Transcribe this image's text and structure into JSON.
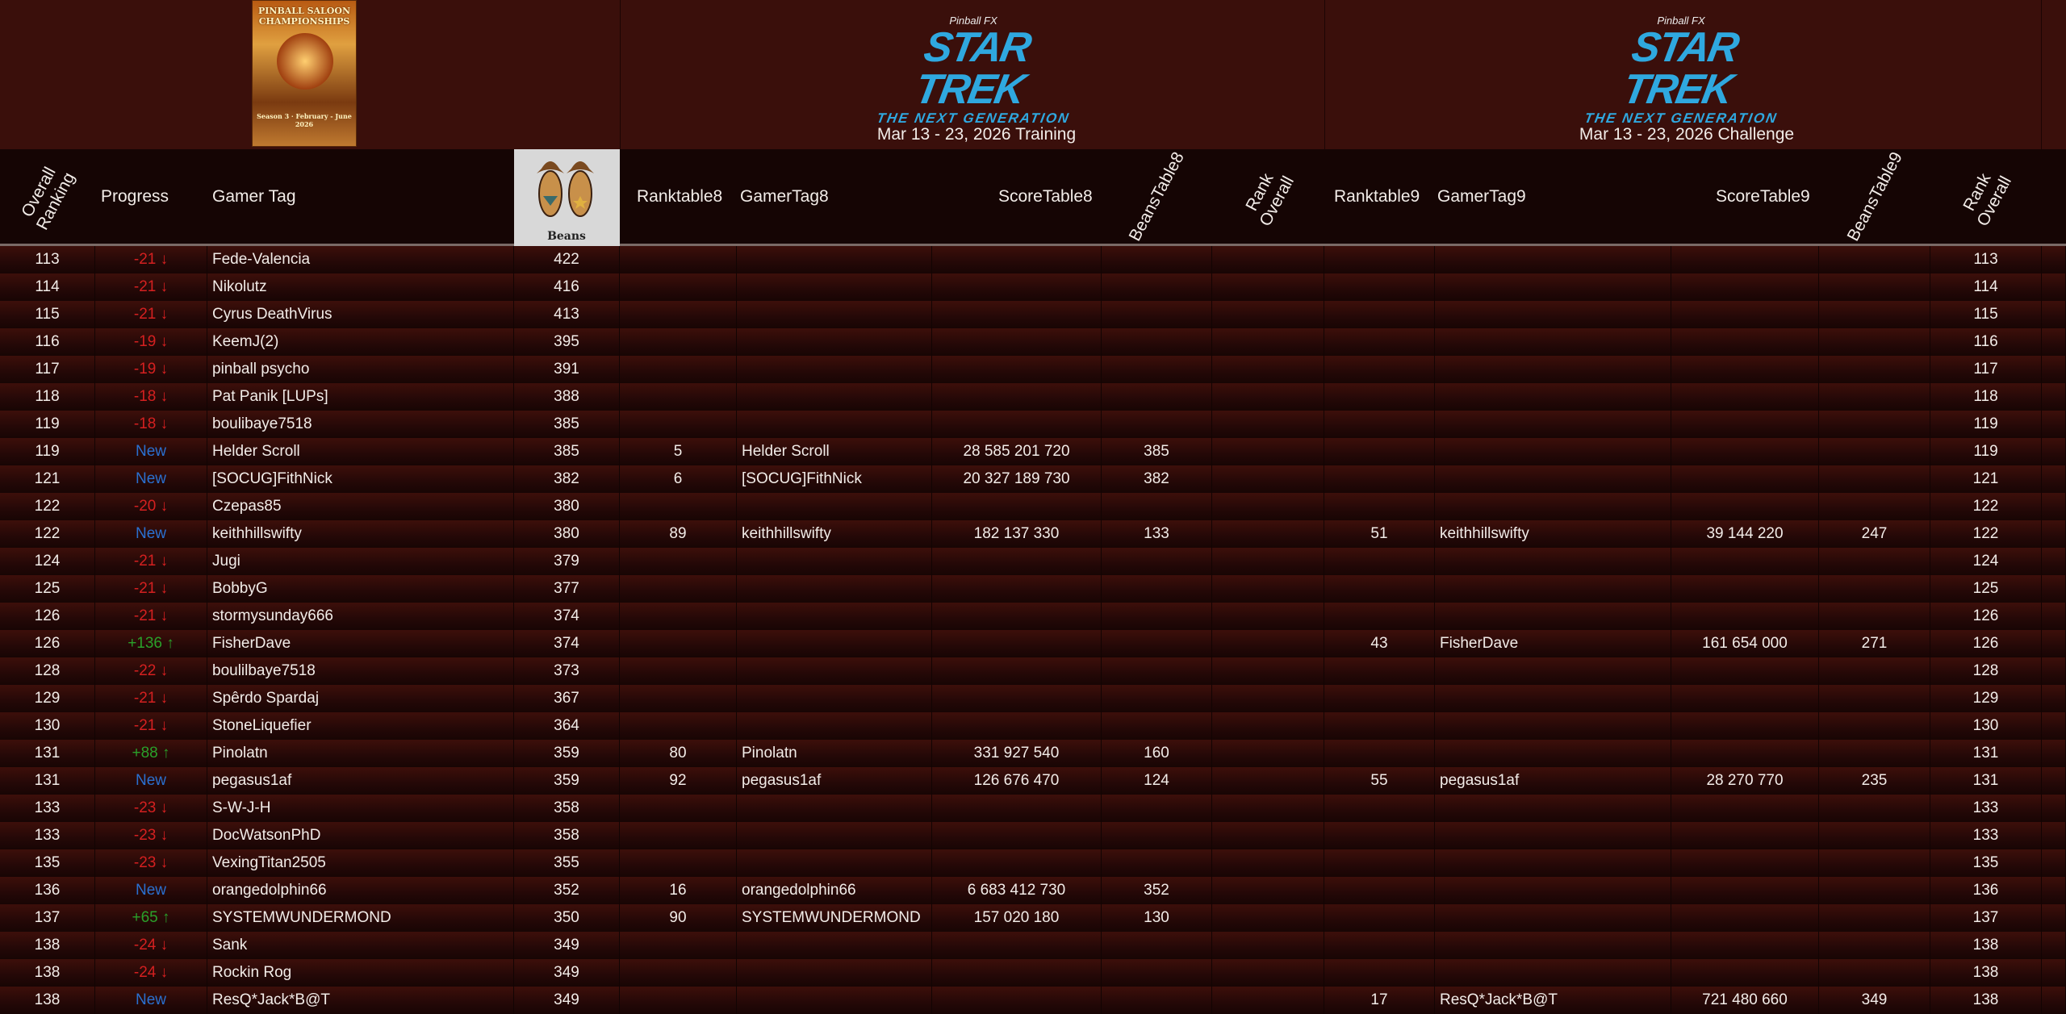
{
  "poster": {
    "title": "PINBALL SALOON CHAMPIONSHIPS",
    "season": "Season 3 · February - June 2026"
  },
  "logos": {
    "pinball_fx": "Pinball FX",
    "star_trek": "STAR TREK",
    "tng": "THE NEXT GENERATION"
  },
  "sections": {
    "training": "Mar 13 - 23, 2026 Training",
    "challenge": "Mar 13 - 23, 2026  Challenge"
  },
  "headers": {
    "overall_ranking": "Overall Ranking",
    "progress": "Progress",
    "gamer_tag": "Gamer Tag",
    "beans": "Beans",
    "ranktable8": "Ranktable8",
    "gamertag8": "GamerTag8",
    "scoretable8": "ScoreTable8",
    "beanstable8": "BeansTable8",
    "rank_overall8": "Rank Overall",
    "ranktable9": "Ranktable9",
    "gamertag9": "GamerTag9",
    "scoretable9": "ScoreTable9",
    "beanstable9": "BeansTable9",
    "rank_overall9": "Rank Overall"
  },
  "colors": {
    "down": "#d42020",
    "up": "#2aa02a",
    "new": "#2a70d0",
    "accent": "#2fa8df"
  },
  "rows": [
    {
      "rank": "113",
      "progress": "-21 ↓",
      "type": "neg",
      "tag": "Fede-Valencia",
      "beans": "422",
      "rt8": "",
      "gt8": "",
      "s8": "",
      "b8": "",
      "rt9": "",
      "gt9": "",
      "s9": "",
      "b9": "",
      "ro9": "113"
    },
    {
      "rank": "114",
      "progress": "-21 ↓",
      "type": "neg",
      "tag": "Nikolutz",
      "beans": "416",
      "rt8": "",
      "gt8": "",
      "s8": "",
      "b8": "",
      "rt9": "",
      "gt9": "",
      "s9": "",
      "b9": "",
      "ro9": "114"
    },
    {
      "rank": "115",
      "progress": "-21 ↓",
      "type": "neg",
      "tag": "Cyrus DeathVirus",
      "beans": "413",
      "rt8": "",
      "gt8": "",
      "s8": "",
      "b8": "",
      "rt9": "",
      "gt9": "",
      "s9": "",
      "b9": "",
      "ro9": "115"
    },
    {
      "rank": "116",
      "progress": "-19 ↓",
      "type": "neg",
      "tag": "KeemJ(2)",
      "beans": "395",
      "rt8": "",
      "gt8": "",
      "s8": "",
      "b8": "",
      "rt9": "",
      "gt9": "",
      "s9": "",
      "b9": "",
      "ro9": "116"
    },
    {
      "rank": "117",
      "progress": "-19 ↓",
      "type": "neg",
      "tag": "pinball psycho",
      "beans": "391",
      "rt8": "",
      "gt8": "",
      "s8": "",
      "b8": "",
      "rt9": "",
      "gt9": "",
      "s9": "",
      "b9": "",
      "ro9": "117"
    },
    {
      "rank": "118",
      "progress": "-18 ↓",
      "type": "neg",
      "tag": "Pat Panik [LUPs]",
      "beans": "388",
      "rt8": "",
      "gt8": "",
      "s8": "",
      "b8": "",
      "rt9": "",
      "gt9": "",
      "s9": "",
      "b9": "",
      "ro9": "118"
    },
    {
      "rank": "119",
      "progress": "-18 ↓",
      "type": "neg",
      "tag": "boulibaye7518",
      "beans": "385",
      "rt8": "",
      "gt8": "",
      "s8": "",
      "b8": "",
      "rt9": "",
      "gt9": "",
      "s9": "",
      "b9": "",
      "ro9": "119"
    },
    {
      "rank": "119",
      "progress": "New",
      "type": "new",
      "tag": "Helder Scroll",
      "beans": "385",
      "rt8": "5",
      "gt8": "Helder Scroll",
      "s8": "28 585 201 720",
      "b8": "385",
      "rt9": "",
      "gt9": "",
      "s9": "",
      "b9": "",
      "ro9": "119"
    },
    {
      "rank": "121",
      "progress": "New",
      "type": "new",
      "tag": "[SOCUG]FithNick",
      "beans": "382",
      "rt8": "6",
      "gt8": "[SOCUG]FithNick",
      "s8": "20 327 189 730",
      "b8": "382",
      "rt9": "",
      "gt9": "",
      "s9": "",
      "b9": "",
      "ro9": "121"
    },
    {
      "rank": "122",
      "progress": "-20 ↓",
      "type": "neg",
      "tag": "Czepas85",
      "beans": "380",
      "rt8": "",
      "gt8": "",
      "s8": "",
      "b8": "",
      "rt9": "",
      "gt9": "",
      "s9": "",
      "b9": "",
      "ro9": "122"
    },
    {
      "rank": "122",
      "progress": "New",
      "type": "new",
      "tag": "keithhillswifty",
      "beans": "380",
      "rt8": "89",
      "gt8": "keithhillswifty",
      "s8": "182 137 330",
      "b8": "133",
      "rt9": "51",
      "gt9": "keithhillswifty",
      "s9": "39 144 220",
      "b9": "247",
      "ro9": "122"
    },
    {
      "rank": "124",
      "progress": "-21 ↓",
      "type": "neg",
      "tag": "Jugi",
      "beans": "379",
      "rt8": "",
      "gt8": "",
      "s8": "",
      "b8": "",
      "rt9": "",
      "gt9": "",
      "s9": "",
      "b9": "",
      "ro9": "124"
    },
    {
      "rank": "125",
      "progress": "-21 ↓",
      "type": "neg",
      "tag": "BobbyG",
      "beans": "377",
      "rt8": "",
      "gt8": "",
      "s8": "",
      "b8": "",
      "rt9": "",
      "gt9": "",
      "s9": "",
      "b9": "",
      "ro9": "125"
    },
    {
      "rank": "126",
      "progress": "-21 ↓",
      "type": "neg",
      "tag": "stormysunday666",
      "beans": "374",
      "rt8": "",
      "gt8": "",
      "s8": "",
      "b8": "",
      "rt9": "",
      "gt9": "",
      "s9": "",
      "b9": "",
      "ro9": "126"
    },
    {
      "rank": "126",
      "progress": "+136 ↑",
      "type": "pos",
      "tag": "FisherDave",
      "beans": "374",
      "rt8": "",
      "gt8": "",
      "s8": "",
      "b8": "",
      "rt9": "43",
      "gt9": "FisherDave",
      "s9": "161 654 000",
      "b9": "271",
      "ro9": "126"
    },
    {
      "rank": "128",
      "progress": "-22 ↓",
      "type": "neg",
      "tag": "boulilbaye7518",
      "beans": "373",
      "rt8": "",
      "gt8": "",
      "s8": "",
      "b8": "",
      "rt9": "",
      "gt9": "",
      "s9": "",
      "b9": "",
      "ro9": "128"
    },
    {
      "rank": "129",
      "progress": "-21 ↓",
      "type": "neg",
      "tag": "Spêrdo Spardaj",
      "beans": "367",
      "rt8": "",
      "gt8": "",
      "s8": "",
      "b8": "",
      "rt9": "",
      "gt9": "",
      "s9": "",
      "b9": "",
      "ro9": "129"
    },
    {
      "rank": "130",
      "progress": "-21 ↓",
      "type": "neg",
      "tag": "StoneLiquefier",
      "beans": "364",
      "rt8": "",
      "gt8": "",
      "s8": "",
      "b8": "",
      "rt9": "",
      "gt9": "",
      "s9": "",
      "b9": "",
      "ro9": "130"
    },
    {
      "rank": "131",
      "progress": "+88 ↑",
      "type": "pos",
      "tag": "Pinolatn",
      "beans": "359",
      "rt8": "80",
      "gt8": "Pinolatn",
      "s8": "331 927 540",
      "b8": "160",
      "rt9": "",
      "gt9": "",
      "s9": "",
      "b9": "",
      "ro9": "131"
    },
    {
      "rank": "131",
      "progress": "New",
      "type": "new",
      "tag": "pegasus1af",
      "beans": "359",
      "rt8": "92",
      "gt8": "pegasus1af",
      "s8": "126 676 470",
      "b8": "124",
      "rt9": "55",
      "gt9": "pegasus1af",
      "s9": "28 270 770",
      "b9": "235",
      "ro9": "131"
    },
    {
      "rank": "133",
      "progress": "-23 ↓",
      "type": "neg",
      "tag": "S-W-J-H",
      "beans": "358",
      "rt8": "",
      "gt8": "",
      "s8": "",
      "b8": "",
      "rt9": "",
      "gt9": "",
      "s9": "",
      "b9": "",
      "ro9": "133"
    },
    {
      "rank": "133",
      "progress": "-23 ↓",
      "type": "neg",
      "tag": "DocWatsonPhD",
      "beans": "358",
      "rt8": "",
      "gt8": "",
      "s8": "",
      "b8": "",
      "rt9": "",
      "gt9": "",
      "s9": "",
      "b9": "",
      "ro9": "133"
    },
    {
      "rank": "135",
      "progress": "-23 ↓",
      "type": "neg",
      "tag": "VexingTitan2505",
      "beans": "355",
      "rt8": "",
      "gt8": "",
      "s8": "",
      "b8": "",
      "rt9": "",
      "gt9": "",
      "s9": "",
      "b9": "",
      "ro9": "135"
    },
    {
      "rank": "136",
      "progress": "New",
      "type": "new",
      "tag": "orangedolphin66",
      "beans": "352",
      "rt8": "16",
      "gt8": "orangedolphin66",
      "s8": "6 683 412 730",
      "b8": "352",
      "rt9": "",
      "gt9": "",
      "s9": "",
      "b9": "",
      "ro9": "136"
    },
    {
      "rank": "137",
      "progress": "+65 ↑",
      "type": "pos",
      "tag": "SYSTEMWUNDERMOND",
      "beans": "350",
      "rt8": "90",
      "gt8": "SYSTEMWUNDERMOND",
      "s8": "157 020 180",
      "b8": "130",
      "rt9": "",
      "gt9": "",
      "s9": "",
      "b9": "",
      "ro9": "137"
    },
    {
      "rank": "138",
      "progress": "-24 ↓",
      "type": "neg",
      "tag": "Sank",
      "beans": "349",
      "rt8": "",
      "gt8": "",
      "s8": "",
      "b8": "",
      "rt9": "",
      "gt9": "",
      "s9": "",
      "b9": "",
      "ro9": "138"
    },
    {
      "rank": "138",
      "progress": "-24 ↓",
      "type": "neg",
      "tag": "Rockin Rog",
      "beans": "349",
      "rt8": "",
      "gt8": "",
      "s8": "",
      "b8": "",
      "rt9": "",
      "gt9": "",
      "s9": "",
      "b9": "",
      "ro9": "138"
    },
    {
      "rank": "138",
      "progress": "New",
      "type": "new",
      "tag": "ResQ*Jack*B@T",
      "beans": "349",
      "rt8": "",
      "gt8": "",
      "s8": "",
      "b8": "",
      "rt9": "17",
      "gt9": "ResQ*Jack*B@T",
      "s9": "721 480 660",
      "b9": "349",
      "ro9": "138"
    }
  ]
}
